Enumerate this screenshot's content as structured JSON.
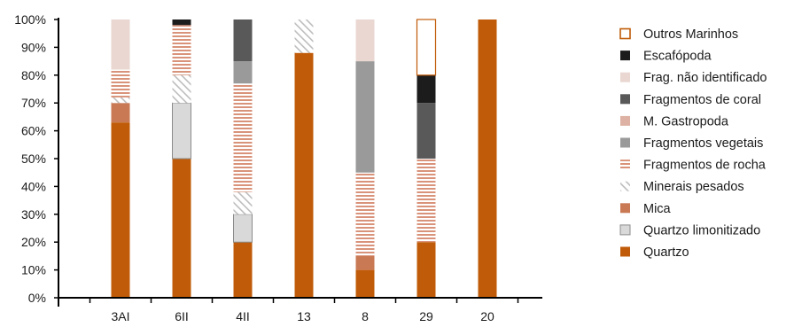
{
  "chart_data": {
    "type": "bar",
    "stacked": true,
    "percent": true,
    "categories": [
      "3AI",
      "6II",
      "4II",
      "13",
      "8",
      "29",
      "20"
    ],
    "ylim": [
      0,
      100
    ],
    "yticks": [
      "0%",
      "10%",
      "20%",
      "30%",
      "40%",
      "50%",
      "60%",
      "70%",
      "80%",
      "90%",
      "100%"
    ],
    "grid": false,
    "legend_position": "right",
    "series": [
      {
        "name": "Quartzo",
        "color": "#c05c09",
        "pattern": "solid",
        "values": [
          63,
          50,
          20,
          88,
          10,
          20,
          100
        ]
      },
      {
        "name": "Quartzo limonitizado",
        "color": "#d9d9d9",
        "pattern": "outlined",
        "values": [
          0,
          20,
          10,
          0,
          0,
          0,
          0
        ]
      },
      {
        "name": "Mica",
        "color": "#c97a55",
        "pattern": "solid",
        "values": [
          7,
          0,
          0,
          0,
          5,
          0,
          0
        ]
      },
      {
        "name": "Minerais pesados",
        "color": "#c9c9c9",
        "pattern": "diagonal",
        "values": [
          2,
          10,
          8,
          12,
          0,
          0,
          0
        ]
      },
      {
        "name": "Fragmentos de rocha",
        "color": "#d9937b",
        "pattern": "stripes",
        "values": [
          10,
          18,
          39,
          0,
          30,
          30,
          0
        ]
      },
      {
        "name": "Fragmentos vegetais",
        "color": "#9a9a9a",
        "pattern": "solid",
        "values": [
          0,
          0,
          8,
          0,
          40,
          0,
          0
        ]
      },
      {
        "name": "M. Gastropoda",
        "color": "#ddb2a4",
        "pattern": "solid",
        "values": [
          0,
          0,
          0,
          0,
          0,
          0,
          0
        ]
      },
      {
        "name": "Fragmentos de coral",
        "color": "#595959",
        "pattern": "solid",
        "values": [
          0,
          0,
          15,
          0,
          0,
          20,
          0
        ]
      },
      {
        "name": "Frag. não identificado",
        "color": "#ead7d1",
        "pattern": "solid",
        "values": [
          18,
          0,
          0,
          0,
          15,
          0,
          0
        ]
      },
      {
        "name": "Escafópoda",
        "color": "#1c1c1c",
        "pattern": "solid",
        "values": [
          0,
          2,
          0,
          0,
          0,
          10,
          0
        ]
      },
      {
        "name": "Outros Marinhos",
        "color": "#c05c09",
        "pattern": "outlined",
        "values": [
          0,
          0,
          0,
          0,
          0,
          20,
          0
        ]
      }
    ],
    "legend_order": [
      "Outros Marinhos",
      "Escafópoda",
      "Frag. não identificado",
      "Fragmentos de coral",
      "M. Gastropoda",
      "Fragmentos vegetais",
      "Fragmentos de rocha",
      "Minerais pesados",
      "Mica",
      "Quartzo limonitizado",
      "Quartzo"
    ]
  }
}
